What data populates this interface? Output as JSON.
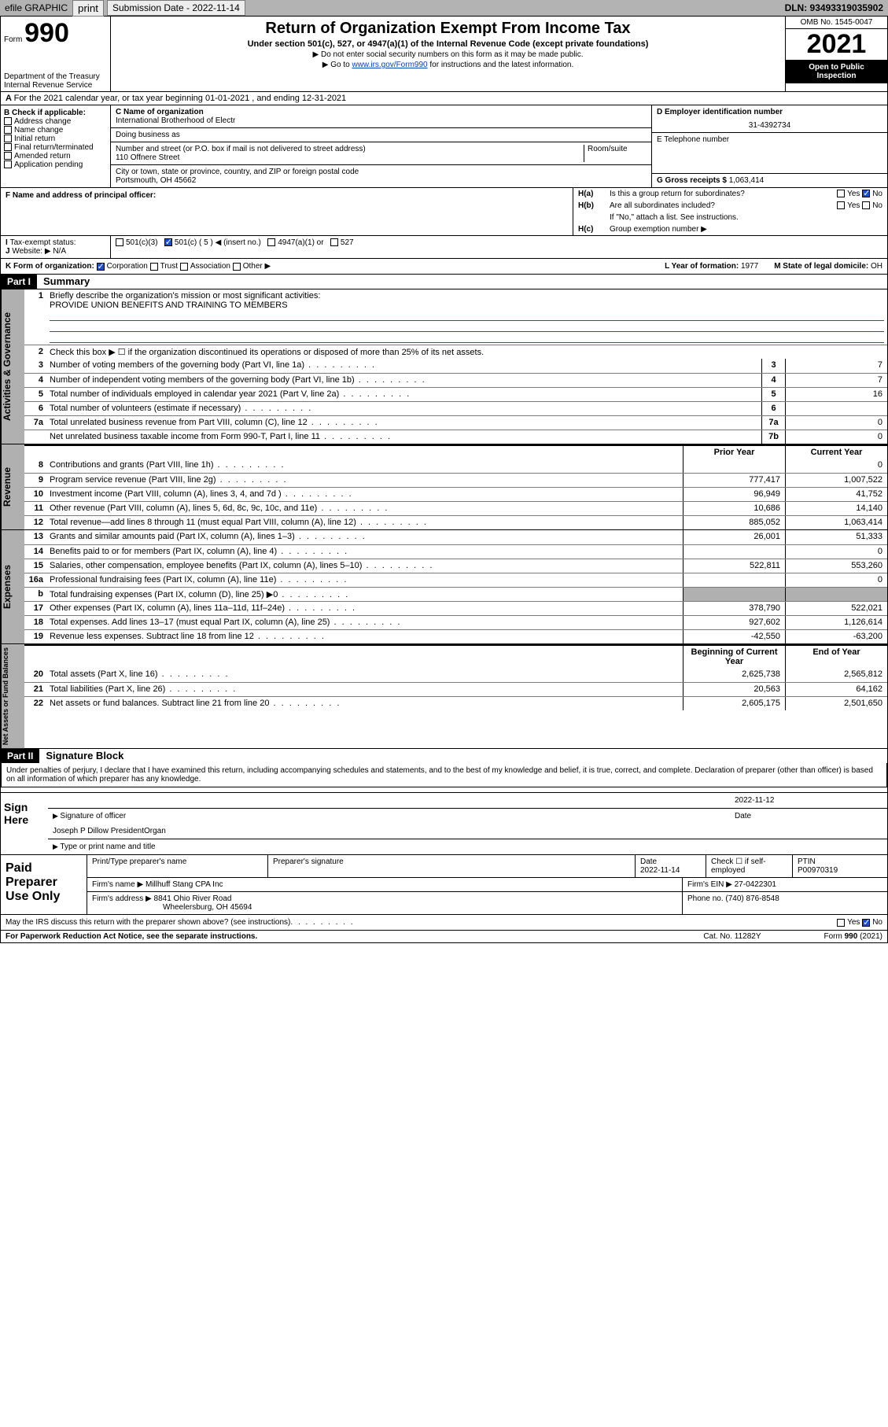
{
  "topbar": {
    "efile_label": "efile GRAPHIC",
    "print_label": "print",
    "submission_label": "Submission Date - 2022-11-14",
    "dln_label": "DLN: 93493319035902"
  },
  "header": {
    "form_word": "Form",
    "form_num": "990",
    "dept": "Department of the Treasury",
    "irs": "Internal Revenue Service",
    "title": "Return of Organization Exempt From Income Tax",
    "subtitle": "Under section 501(c), 527, or 4947(a)(1) of the Internal Revenue Code (except private foundations)",
    "line1": "▶ Do not enter social security numbers on this form as it may be made public.",
    "line2_pre": "▶ Go to ",
    "line2_link": "www.irs.gov/Form990",
    "line2_post": " for instructions and the latest information.",
    "omb": "OMB No. 1545-0047",
    "year": "2021",
    "open": "Open to Public Inspection"
  },
  "rowA": {
    "text": "For the 2021 calendar year, or tax year beginning 01-01-2021    , and ending 12-31-2021"
  },
  "colB": {
    "title": "B Check if applicable:",
    "items": [
      "Address change",
      "Name change",
      "Initial return",
      "Final return/terminated",
      "Amended return",
      "Application pending"
    ]
  },
  "colC": {
    "name_label": "C Name of organization",
    "name_val": "International Brotherhood of Electr",
    "dba_label": "Doing business as",
    "addr_label": "Number and street (or P.O. box if mail is not delivered to street address)",
    "room_label": "Room/suite",
    "addr_val": "110 Offnere Street",
    "city_label": "City or town, state or province, country, and ZIP or foreign postal code",
    "city_val": "Portsmouth, OH  45662"
  },
  "colD": {
    "ein_label": "D Employer identification number",
    "ein_val": "31-4392734",
    "phone_label": "E Telephone number",
    "gross_label": "G Gross receipts $",
    "gross_val": "1,063,414"
  },
  "rowF": {
    "label": "F  Name and address of principal officer:"
  },
  "rowH": {
    "ha_label": "H(a)",
    "ha_text": "Is this a group return for subordinates?",
    "hb_label": "H(b)",
    "hb_text": "Are all subordinates included?",
    "hb_note": "If \"No,\" attach a list. See instructions.",
    "hc_label": "H(c)",
    "hc_text": "Group exemption number ▶",
    "yes": "Yes",
    "no": "No"
  },
  "rowI": {
    "label": "Tax-exempt status:",
    "opt1": "501(c)(3)",
    "opt2": "501(c) ( 5 ) ◀ (insert no.)",
    "opt3": "4947(a)(1) or",
    "opt4": "527"
  },
  "rowJ": {
    "label": "Website: ▶",
    "val": "N/A"
  },
  "rowK": {
    "label": "K Form of organization:",
    "opts": [
      "Corporation",
      "Trust",
      "Association",
      "Other ▶"
    ],
    "year_label": "L Year of formation:",
    "year_val": "1977",
    "state_label": "M State of legal domicile:",
    "state_val": "OH"
  },
  "part1": {
    "part": "Part I",
    "title": "Summary",
    "mission_label": "Briefly describe the organization's mission or most significant activities:",
    "mission_val": "PROVIDE UNION BENEFITS AND TRAINING TO MEMBERS",
    "line2": "Check this box ▶ ☐  if the organization discontinued its operations or disposed of more than 25% of its net assets.",
    "tabs": {
      "gov": "Activities & Governance",
      "rev": "Revenue",
      "exp": "Expenses",
      "net": "Net Assets or Fund Balances"
    },
    "col_prior": "Prior Year",
    "col_current": "Current Year",
    "col_boy": "Beginning of Current Year",
    "col_eoy": "End of Year",
    "lines_gov": [
      {
        "n": "3",
        "d": "Number of voting members of the governing body (Part VI, line 1a)",
        "box": "3",
        "v": "7"
      },
      {
        "n": "4",
        "d": "Number of independent voting members of the governing body (Part VI, line 1b)",
        "box": "4",
        "v": "7"
      },
      {
        "n": "5",
        "d": "Total number of individuals employed in calendar year 2021 (Part V, line 2a)",
        "box": "5",
        "v": "16"
      },
      {
        "n": "6",
        "d": "Total number of volunteers (estimate if necessary)",
        "box": "6",
        "v": ""
      },
      {
        "n": "7a",
        "d": "Total unrelated business revenue from Part VIII, column (C), line 12",
        "box": "7a",
        "v": "0"
      },
      {
        "n": "",
        "d": "Net unrelated business taxable income from Form 990-T, Part I, line 11",
        "box": "7b",
        "v": "0"
      }
    ],
    "lines_rev": [
      {
        "n": "8",
        "d": "Contributions and grants (Part VIII, line 1h)",
        "p": "",
        "c": "0"
      },
      {
        "n": "9",
        "d": "Program service revenue (Part VIII, line 2g)",
        "p": "777,417",
        "c": "1,007,522"
      },
      {
        "n": "10",
        "d": "Investment income (Part VIII, column (A), lines 3, 4, and 7d )",
        "p": "96,949",
        "c": "41,752"
      },
      {
        "n": "11",
        "d": "Other revenue (Part VIII, column (A), lines 5, 6d, 8c, 9c, 10c, and 11e)",
        "p": "10,686",
        "c": "14,140"
      },
      {
        "n": "12",
        "d": "Total revenue—add lines 8 through 11 (must equal Part VIII, column (A), line 12)",
        "p": "885,052",
        "c": "1,063,414"
      }
    ],
    "lines_exp": [
      {
        "n": "13",
        "d": "Grants and similar amounts paid (Part IX, column (A), lines 1–3)",
        "p": "26,001",
        "c": "51,333"
      },
      {
        "n": "14",
        "d": "Benefits paid to or for members (Part IX, column (A), line 4)",
        "p": "",
        "c": "0"
      },
      {
        "n": "15",
        "d": "Salaries, other compensation, employee benefits (Part IX, column (A), lines 5–10)",
        "p": "522,811",
        "c": "553,260"
      },
      {
        "n": "16a",
        "d": "Professional fundraising fees (Part IX, column (A), line 11e)",
        "p": "",
        "c": "0"
      },
      {
        "n": "b",
        "d": "Total fundraising expenses (Part IX, column (D), line 25) ▶0",
        "p": "shade",
        "c": "shade"
      },
      {
        "n": "17",
        "d": "Other expenses (Part IX, column (A), lines 11a–11d, 11f–24e)",
        "p": "378,790",
        "c": "522,021"
      },
      {
        "n": "18",
        "d": "Total expenses. Add lines 13–17 (must equal Part IX, column (A), line 25)",
        "p": "927,602",
        "c": "1,126,614"
      },
      {
        "n": "19",
        "d": "Revenue less expenses. Subtract line 18 from line 12",
        "p": "-42,550",
        "c": "-63,200"
      }
    ],
    "lines_net": [
      {
        "n": "20",
        "d": "Total assets (Part X, line 16)",
        "p": "2,625,738",
        "c": "2,565,812"
      },
      {
        "n": "21",
        "d": "Total liabilities (Part X, line 26)",
        "p": "20,563",
        "c": "64,162"
      },
      {
        "n": "22",
        "d": "Net assets or fund balances. Subtract line 21 from line 20",
        "p": "2,605,175",
        "c": "2,501,650"
      }
    ]
  },
  "part2": {
    "part": "Part II",
    "title": "Signature Block",
    "declaration": "Under penalties of perjury, I declare that I have examined this return, including accompanying schedules and statements, and to the best of my knowledge and belief, it is true, correct, and complete. Declaration of preparer (other than officer) is based on all information of which preparer has any knowledge.",
    "sign_here": "Sign Here",
    "sig_officer": "Signature of officer",
    "sig_date": "Date",
    "sig_date_val": "2022-11-12",
    "sig_name_val": "Joseph P Dillow  PresidentOrgan",
    "sig_name_label": "Type or print name and title",
    "paid_title": "Paid Preparer Use Only",
    "paid_hdr": [
      "Print/Type preparer's name",
      "Preparer's signature",
      "Date",
      "",
      "PTIN"
    ],
    "paid_date": "2022-11-14",
    "paid_check": "Check ☐ if self-employed",
    "paid_ptin": "P00970319",
    "firm_name_label": "Firm's name    ▶",
    "firm_name_val": "Millhuff Stang CPA Inc",
    "firm_ein_label": "Firm's EIN ▶",
    "firm_ein_val": "27-0422301",
    "firm_addr_label": "Firm's address ▶",
    "firm_addr_val": "8841 Ohio River Road",
    "firm_city_val": "Wheelersburg, OH  45694",
    "firm_phone_label": "Phone no.",
    "firm_phone_val": "(740) 876-8548",
    "discuss": "May the IRS discuss this return with the preparer shown above? (see instructions)"
  },
  "footer": {
    "pra": "For Paperwork Reduction Act Notice, see the separate instructions.",
    "cat": "Cat. No. 11282Y",
    "form": "Form 990 (2021)"
  }
}
